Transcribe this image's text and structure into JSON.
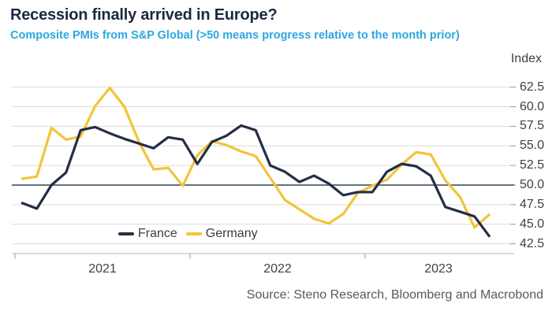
{
  "header": {
    "title": "Recession finally arrived in Europe?",
    "subtitle": "Composite PMIs from S&P Global (>50 means progress relative to the month prior)",
    "title_color": "#1b2940",
    "subtitle_color": "#2ba7e0"
  },
  "chart_data": {
    "type": "line",
    "title": "Recession finally arrived in Europe?",
    "subtitle": "Composite PMIs from S&P Global (>50 means progress relative to the month prior)",
    "unit_label": "Index",
    "grid": "horizontal",
    "legend_position": "bottom-center-left",
    "ylim": [
      41.5,
      63.5
    ],
    "yticks": [
      42.5,
      45.0,
      47.5,
      50.0,
      52.5,
      55.0,
      57.5,
      60.0,
      62.5
    ],
    "reference_line": 50.0,
    "x_year_ticks": [
      "2021",
      "2022",
      "2023"
    ],
    "x_months": [
      "Jan 2021",
      "Feb 2021",
      "Mar 2021",
      "Apr 2021",
      "May 2021",
      "Jun 2021",
      "Jul 2021",
      "Aug 2021",
      "Sep 2021",
      "Oct 2021",
      "Nov 2021",
      "Dec 2021",
      "Jan 2022",
      "Feb 2022",
      "Mar 2022",
      "Apr 2022",
      "May 2022",
      "Jun 2022",
      "Jul 2022",
      "Aug 2022",
      "Sep 2022",
      "Oct 2022",
      "Nov 2022",
      "Dec 2022",
      "Jan 2023",
      "Feb 2023",
      "Mar 2023",
      "Apr 2023",
      "May 2023",
      "Jun 2023",
      "Jul 2023",
      "Aug 2023",
      "Sep 2023"
    ],
    "series": [
      {
        "name": "France",
        "color": "#242e45",
        "values": [
          47.7,
          47.0,
          50.0,
          51.6,
          57.0,
          57.4,
          56.6,
          55.9,
          55.3,
          54.7,
          56.1,
          55.8,
          52.7,
          55.5,
          56.3,
          57.6,
          57.0,
          52.5,
          51.7,
          50.4,
          51.2,
          50.2,
          48.7,
          49.1,
          49.1,
          51.7,
          52.7,
          52.4,
          51.2,
          47.2,
          46.6,
          46.0,
          43.5
        ]
      },
      {
        "name": "Germany",
        "color": "#f1c53a",
        "values": [
          50.8,
          51.1,
          57.3,
          55.8,
          56.2,
          60.1,
          62.4,
          60.0,
          55.5,
          52.0,
          52.2,
          49.9,
          53.8,
          55.6,
          55.1,
          54.3,
          53.7,
          50.9,
          48.1,
          46.9,
          45.7,
          45.1,
          46.3,
          49.0,
          49.9,
          50.7,
          52.6,
          54.2,
          53.9,
          50.6,
          48.5,
          44.6,
          46.2
        ]
      }
    ],
    "colors": {
      "gridline": "#dcdcdc",
      "axis_line": "#b9b9b9",
      "tick_mark": "#999999",
      "reference_line": "#2e4357"
    }
  },
  "footer": {
    "source": "Source: Steno Research, Bloomberg and Macrobond"
  }
}
